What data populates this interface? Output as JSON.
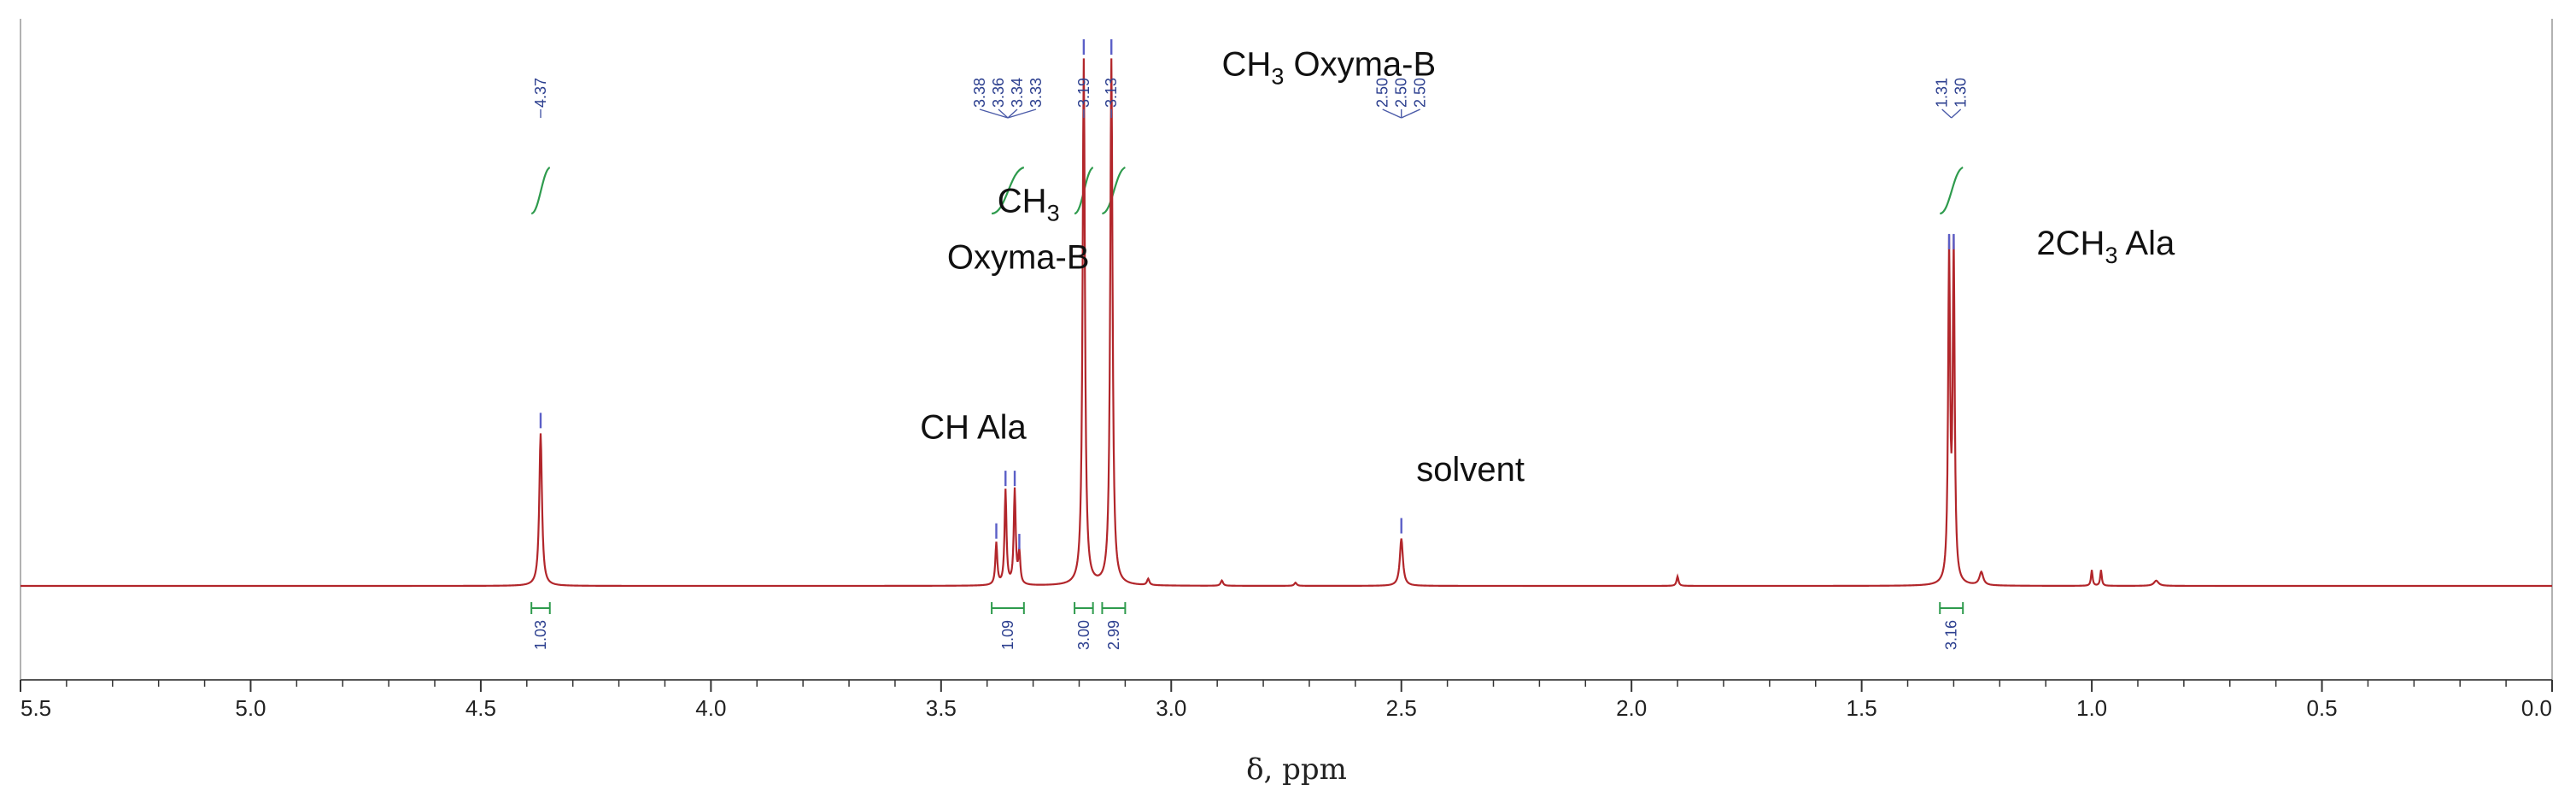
{
  "chart_data": {
    "type": "line",
    "title": "",
    "xlabel": "δ, ppm",
    "ylabel": "",
    "xlim": [
      5.5,
      0.0
    ],
    "x_reversed": true,
    "grid": false,
    "x_ticks": [
      {
        "value": 5.5,
        "label": "5.5"
      },
      {
        "value": 5.0,
        "label": "5.0"
      },
      {
        "value": 4.5,
        "label": "4.5"
      },
      {
        "value": 4.0,
        "label": "4.0"
      },
      {
        "value": 3.5,
        "label": "3.5"
      },
      {
        "value": 3.0,
        "label": "3.0"
      },
      {
        "value": 2.5,
        "label": "2.5"
      },
      {
        "value": 2.0,
        "label": "2.0"
      },
      {
        "value": 1.5,
        "label": "1.5"
      },
      {
        "value": 1.0,
        "label": "1.0"
      },
      {
        "value": 0.5,
        "label": "0.5"
      },
      {
        "value": 0.0,
        "label": "0.0"
      }
    ],
    "series": [
      {
        "color": "#b2262b",
        "peaks": [
          {
            "x": 4.37,
            "height": 0.29,
            "width": 0.007
          },
          {
            "x": 3.38,
            "height": 0.08,
            "width": 0.005
          },
          {
            "x": 3.36,
            "height": 0.18,
            "width": 0.005
          },
          {
            "x": 3.34,
            "height": 0.18,
            "width": 0.005
          },
          {
            "x": 3.33,
            "height": 0.06,
            "width": 0.005
          },
          {
            "x": 3.19,
            "height": 1.0,
            "width": 0.006
          },
          {
            "x": 3.13,
            "height": 1.0,
            "width": 0.006
          },
          {
            "x": 3.05,
            "height": 0.012,
            "width": 0.006
          },
          {
            "x": 2.89,
            "height": 0.01,
            "width": 0.006
          },
          {
            "x": 2.73,
            "height": 0.006,
            "width": 0.006
          },
          {
            "x": 2.5,
            "height": 0.09,
            "width": 0.008
          },
          {
            "x": 1.9,
            "height": 0.018,
            "width": 0.005
          },
          {
            "x": 1.31,
            "height": 0.63,
            "width": 0.005
          },
          {
            "x": 1.3,
            "height": 0.63,
            "width": 0.005
          },
          {
            "x": 1.24,
            "height": 0.025,
            "width": 0.01
          },
          {
            "x": 1.0,
            "height": 0.03,
            "width": 0.004
          },
          {
            "x": 0.98,
            "height": 0.03,
            "width": 0.004
          },
          {
            "x": 0.86,
            "height": 0.01,
            "width": 0.012
          }
        ]
      }
    ],
    "peak_labels": [
      {
        "group": "4.37",
        "values": [
          "4.37"
        ],
        "at": 4.37
      },
      {
        "group": "3.3",
        "values": [
          "3.38",
          "3.36",
          "3.34",
          "3.33"
        ],
        "at": 3.355
      },
      {
        "group": "3.19",
        "values": [
          "3.19"
        ],
        "at": 3.19
      },
      {
        "group": "3.13",
        "values": [
          "3.13"
        ],
        "at": 3.13
      },
      {
        "group": "2.50",
        "values": [
          "2.50",
          "2.50",
          "2.50"
        ],
        "at": 2.5
      },
      {
        "group": "1.3",
        "values": [
          "1.31",
          "1.30"
        ],
        "at": 1.305
      }
    ],
    "integrals": [
      {
        "from": 4.39,
        "to": 4.35,
        "value": "1.03"
      },
      {
        "from": 3.39,
        "to": 3.32,
        "value": "1.09"
      },
      {
        "from": 3.21,
        "to": 3.17,
        "value": "3.00"
      },
      {
        "from": 3.15,
        "to": 3.1,
        "value": "2.99"
      },
      {
        "from": 1.33,
        "to": 1.28,
        "value": "3.16"
      }
    ],
    "annotations": [
      {
        "text": "CH Ala",
        "at": 3.43,
        "height": 0.28
      },
      {
        "text_main": "CH",
        "text_sub": "3",
        "text_line2": "Oxyma-B",
        "at": 3.31,
        "height": 0.71
      },
      {
        "text_main": "CH",
        "text_sub": "3",
        "text_rest": " Oxyma-B",
        "at": 2.89,
        "height": 0.97
      },
      {
        "text": "solvent",
        "at": 2.35,
        "height": 0.2
      },
      {
        "text_main": "2CH",
        "text_sub": "3",
        "text_rest": " Ala",
        "at": 1.12,
        "height": 0.63
      }
    ]
  }
}
